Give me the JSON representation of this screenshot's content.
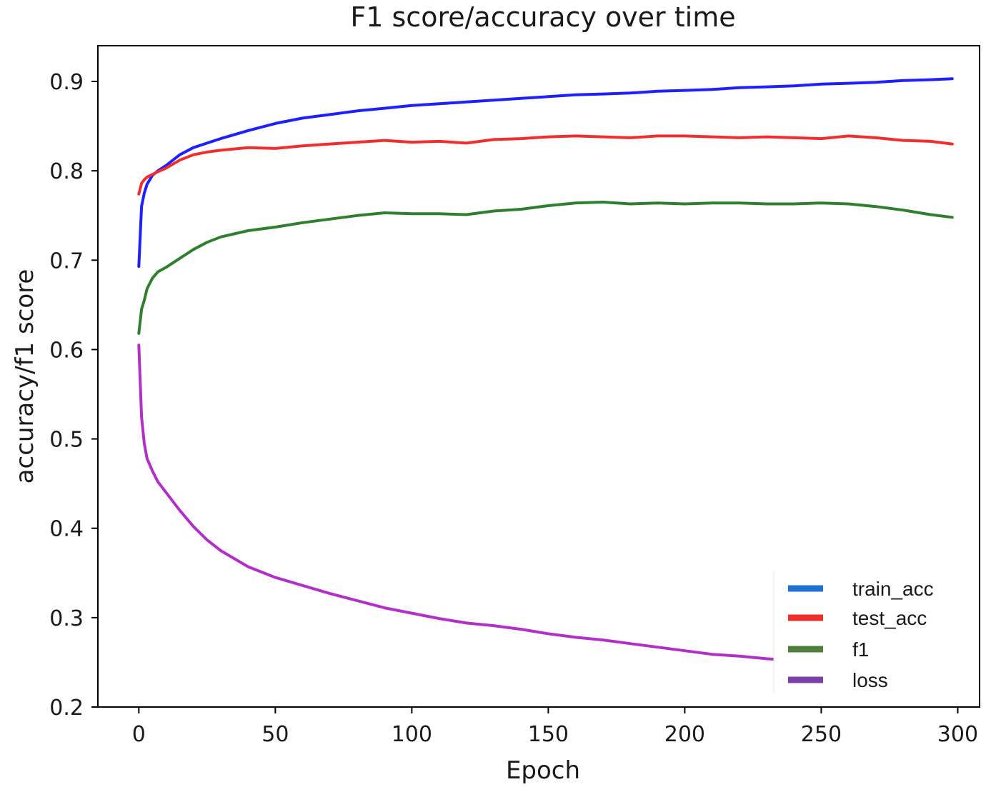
{
  "chart_data": {
    "type": "line",
    "title": "F1 score/accuracy over time",
    "xlabel": "Epoch",
    "ylabel": "accuracy/f1 score",
    "xlim": [
      -15,
      308
    ],
    "ylim": [
      0.2,
      0.94
    ],
    "xticks": [
      0,
      50,
      100,
      150,
      200,
      250,
      300
    ],
    "yticks": [
      0.2,
      0.3,
      0.4,
      0.5,
      0.6,
      0.7,
      0.8,
      0.9
    ],
    "xtick_labels": [
      "0",
      "50",
      "100",
      "150",
      "200",
      "250",
      "300"
    ],
    "ytick_labels": [
      "0.2",
      "0.3",
      "0.4",
      "0.5",
      "0.6",
      "0.7",
      "0.8",
      "0.9"
    ],
    "grid": false,
    "legend_position": "lower-right",
    "x": [
      0,
      1,
      2,
      3,
      5,
      7,
      10,
      15,
      20,
      25,
      30,
      40,
      50,
      60,
      70,
      80,
      90,
      100,
      110,
      120,
      130,
      140,
      150,
      160,
      170,
      180,
      190,
      200,
      210,
      220,
      230,
      240,
      250,
      260,
      270,
      280,
      290,
      298
    ],
    "series": [
      {
        "name": "train_acc",
        "color": "#1f1fff",
        "legend_color": "#1f6fd6",
        "values": [
          0.693,
          0.76,
          0.775,
          0.785,
          0.795,
          0.8,
          0.806,
          0.818,
          0.826,
          0.831,
          0.836,
          0.845,
          0.853,
          0.859,
          0.863,
          0.867,
          0.87,
          0.873,
          0.875,
          0.877,
          0.879,
          0.881,
          0.883,
          0.885,
          0.886,
          0.887,
          0.889,
          0.89,
          0.891,
          0.893,
          0.894,
          0.895,
          0.897,
          0.898,
          0.899,
          0.901,
          0.902,
          0.903
        ]
      },
      {
        "name": "test_acc",
        "color": "#ef2f2f",
        "legend_color": "#ef2f2f",
        "values": [
          0.774,
          0.786,
          0.79,
          0.793,
          0.796,
          0.799,
          0.803,
          0.812,
          0.818,
          0.821,
          0.823,
          0.826,
          0.825,
          0.828,
          0.83,
          0.832,
          0.834,
          0.832,
          0.833,
          0.831,
          0.835,
          0.836,
          0.838,
          0.839,
          0.838,
          0.837,
          0.839,
          0.839,
          0.838,
          0.837,
          0.838,
          0.837,
          0.836,
          0.839,
          0.837,
          0.834,
          0.833,
          0.83
        ]
      },
      {
        "name": "f1",
        "color": "#2f7f2f",
        "legend_color": "#4f7f3f",
        "values": [
          0.618,
          0.645,
          0.655,
          0.668,
          0.68,
          0.687,
          0.692,
          0.702,
          0.712,
          0.72,
          0.726,
          0.733,
          0.737,
          0.742,
          0.746,
          0.75,
          0.753,
          0.752,
          0.752,
          0.751,
          0.755,
          0.757,
          0.761,
          0.764,
          0.765,
          0.763,
          0.764,
          0.763,
          0.764,
          0.764,
          0.763,
          0.763,
          0.764,
          0.763,
          0.76,
          0.756,
          0.751,
          0.748
        ]
      },
      {
        "name": "loss",
        "color": "#b030c8",
        "legend_color": "#7a3fa8",
        "values": [
          0.605,
          0.525,
          0.495,
          0.478,
          0.464,
          0.452,
          0.44,
          0.42,
          0.402,
          0.387,
          0.375,
          0.357,
          0.345,
          0.336,
          0.327,
          0.319,
          0.311,
          0.305,
          0.299,
          0.294,
          0.291,
          0.287,
          0.282,
          0.278,
          0.275,
          0.271,
          0.267,
          0.263,
          0.259,
          0.257,
          0.254,
          0.252,
          0.25,
          0.248,
          0.246,
          0.244,
          0.242,
          0.24
        ]
      }
    ]
  }
}
